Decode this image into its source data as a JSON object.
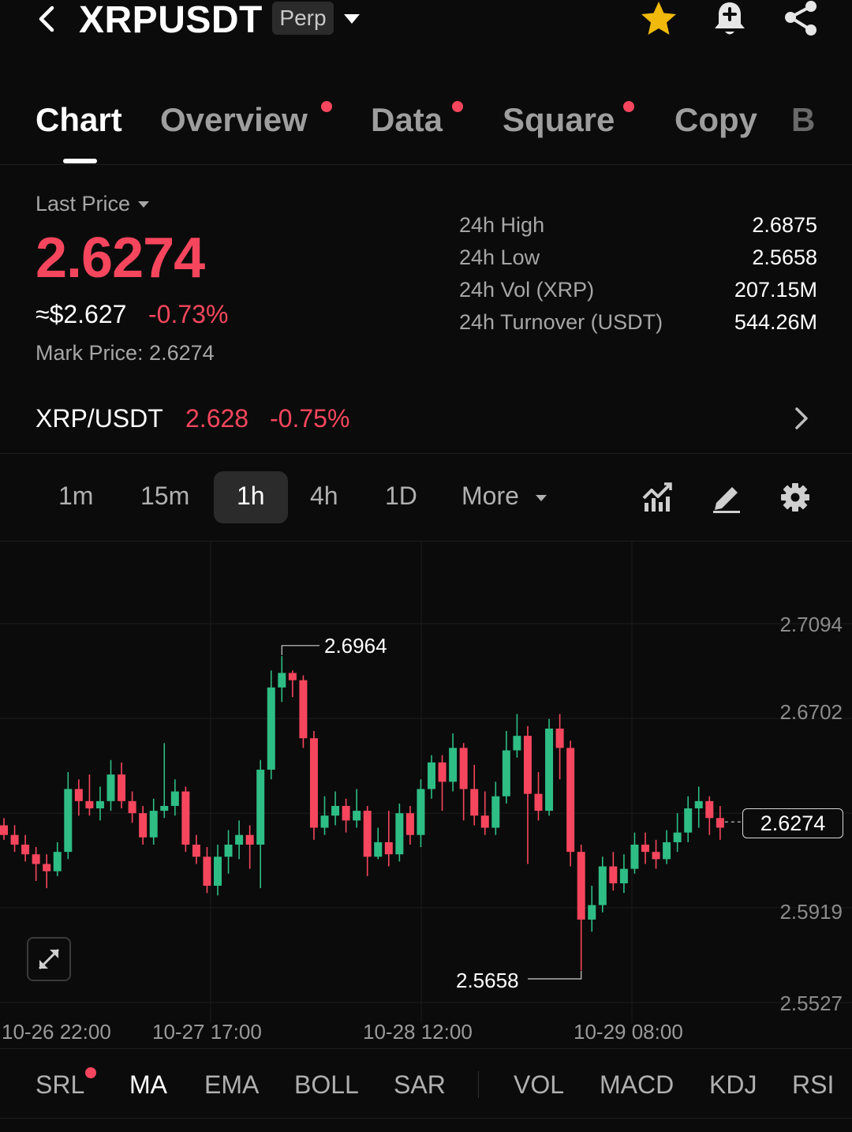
{
  "header": {
    "symbol": "XRPUSDT",
    "contract_type": "Perp"
  },
  "tabs": [
    {
      "label": "Chart",
      "active": true,
      "dot": false
    },
    {
      "label": "Overview",
      "active": false,
      "dot": true
    },
    {
      "label": "Data",
      "active": false,
      "dot": true
    },
    {
      "label": "Square",
      "active": false,
      "dot": true
    },
    {
      "label": "Copy",
      "active": false,
      "dot": false
    },
    {
      "label": "B",
      "active": false,
      "dot": false
    }
  ],
  "price": {
    "label": "Last Price",
    "last": "2.6274",
    "approx_usd": "≈$2.627",
    "change": "-0.73%",
    "mark_label": "Mark Price:",
    "mark_value": "2.6274"
  },
  "stats": [
    {
      "label": "24h High",
      "value": "2.6875"
    },
    {
      "label": "24h Low",
      "value": "2.5658"
    },
    {
      "label": "24h Vol (XRP)",
      "value": "207.15M"
    },
    {
      "label": "24h Turnover (USDT)",
      "value": "544.26M"
    }
  ],
  "spot": {
    "pair": "XRP/USDT",
    "price": "2.628",
    "change": "-0.75%"
  },
  "intervals": [
    "1m",
    "15m",
    "1h",
    "4h",
    "1D"
  ],
  "active_interval": "1h",
  "more_label": "More",
  "colors": {
    "up": "#2ebd85",
    "down": "#f6465d",
    "accent_star": "#f0b90b"
  },
  "chart_data": {
    "type": "candlestick",
    "y_ticks": [
      "2.7094",
      "2.6702",
      "2.5919",
      "2.5527"
    ],
    "x_ticks": [
      "10-26 22:00",
      "10-27 17:00",
      "10-28 12:00",
      "10-29 08:00"
    ],
    "ylim": [
      2.5527,
      2.7094
    ],
    "high_marker": "2.6964",
    "low_marker": "2.5658",
    "current_price": "2.6274",
    "candles": [
      [
        2.626,
        2.622,
        2.629,
        2.62
      ],
      [
        2.622,
        2.618,
        2.626,
        2.615
      ],
      [
        2.618,
        2.614,
        2.622,
        2.611
      ],
      [
        2.614,
        2.61,
        2.617,
        2.603
      ],
      [
        2.61,
        2.607,
        2.614,
        2.6
      ],
      [
        2.607,
        2.615,
        2.619,
        2.605
      ],
      [
        2.615,
        2.641,
        2.648,
        2.612
      ],
      [
        2.641,
        2.636,
        2.645,
        2.63
      ],
      [
        2.636,
        2.633,
        2.647,
        2.63
      ],
      [
        2.633,
        2.636,
        2.642,
        2.628
      ],
      [
        2.636,
        2.647,
        2.653,
        2.632
      ],
      [
        2.647,
        2.636,
        2.652,
        2.633
      ],
      [
        2.636,
        2.631,
        2.64,
        2.627
      ],
      [
        2.631,
        2.621,
        2.634,
        2.618
      ],
      [
        2.621,
        2.632,
        2.637,
        2.618
      ],
      [
        2.632,
        2.634,
        2.66,
        2.629
      ],
      [
        2.634,
        2.64,
        2.645,
        2.63
      ],
      [
        2.64,
        2.618,
        2.642,
        2.615
      ],
      [
        2.618,
        2.613,
        2.622,
        2.61
      ],
      [
        2.613,
        2.601,
        2.617,
        2.598
      ],
      [
        2.601,
        2.613,
        2.618,
        2.597
      ],
      [
        2.613,
        2.618,
        2.624,
        2.606
      ],
      [
        2.618,
        2.622,
        2.628,
        2.612
      ],
      [
        2.622,
        2.618,
        2.626,
        2.608
      ],
      [
        2.618,
        2.649,
        2.653,
        2.6
      ],
      [
        2.649,
        2.683,
        2.69,
        2.645
      ],
      [
        2.683,
        2.689,
        2.696,
        2.677
      ],
      [
        2.689,
        2.686,
        2.69,
        2.679
      ],
      [
        2.686,
        2.662,
        2.688,
        2.658
      ],
      [
        2.662,
        2.625,
        2.665,
        2.62
      ],
      [
        2.625,
        2.63,
        2.638,
        2.622
      ],
      [
        2.63,
        2.634,
        2.64,
        2.626
      ],
      [
        2.634,
        2.628,
        2.637,
        2.623
      ],
      [
        2.628,
        2.632,
        2.641,
        2.625
      ],
      [
        2.632,
        2.613,
        2.634,
        2.605
      ],
      [
        2.613,
        2.619,
        2.625,
        2.612
      ],
      [
        2.619,
        2.614,
        2.632,
        2.609
      ],
      [
        2.614,
        2.631,
        2.635,
        2.611
      ],
      [
        2.631,
        2.622,
        2.634,
        2.618
      ],
      [
        2.622,
        2.641,
        2.645,
        2.617
      ],
      [
        2.641,
        2.652,
        2.655,
        2.637
      ],
      [
        2.652,
        2.644,
        2.655,
        2.632
      ],
      [
        2.644,
        2.658,
        2.664,
        2.64
      ],
      [
        2.658,
        2.641,
        2.66,
        2.628
      ],
      [
        2.641,
        2.63,
        2.651,
        2.626
      ],
      [
        2.63,
        2.625,
        2.64,
        2.622
      ],
      [
        2.625,
        2.638,
        2.644,
        2.622
      ],
      [
        2.638,
        2.657,
        2.665,
        2.635
      ],
      [
        2.657,
        2.663,
        2.672,
        2.654
      ],
      [
        2.663,
        2.639,
        2.667,
        2.61
      ],
      [
        2.639,
        2.632,
        2.648,
        2.628
      ],
      [
        2.632,
        2.666,
        2.67,
        2.63
      ],
      [
        2.666,
        2.658,
        2.672,
        2.645
      ],
      [
        2.658,
        2.615,
        2.661,
        2.609
      ],
      [
        2.615,
        2.587,
        2.618,
        2.566
      ],
      [
        2.587,
        2.593,
        2.601,
        2.582
      ],
      [
        2.593,
        2.609,
        2.613,
        2.59
      ],
      [
        2.609,
        2.602,
        2.615,
        2.599
      ],
      [
        2.602,
        2.608,
        2.614,
        2.598
      ],
      [
        2.608,
        2.618,
        2.623,
        2.606
      ],
      [
        2.618,
        2.615,
        2.623,
        2.61
      ],
      [
        2.615,
        2.612,
        2.62,
        2.608
      ],
      [
        2.612,
        2.619,
        2.624,
        2.61
      ],
      [
        2.619,
        2.623,
        2.631,
        2.615
      ],
      [
        2.623,
        2.633,
        2.638,
        2.619
      ],
      [
        2.633,
        2.636,
        2.642,
        2.625
      ],
      [
        2.636,
        2.629,
        2.638,
        2.622
      ],
      [
        2.629,
        2.625,
        2.634,
        2.62
      ]
    ]
  },
  "indicators_main": [
    "SRL",
    "MA",
    "EMA",
    "BOLL",
    "SAR"
  ],
  "indicators_sub": [
    "VOL",
    "MACD",
    "KDJ",
    "RSI"
  ],
  "active_indicator": "MA"
}
